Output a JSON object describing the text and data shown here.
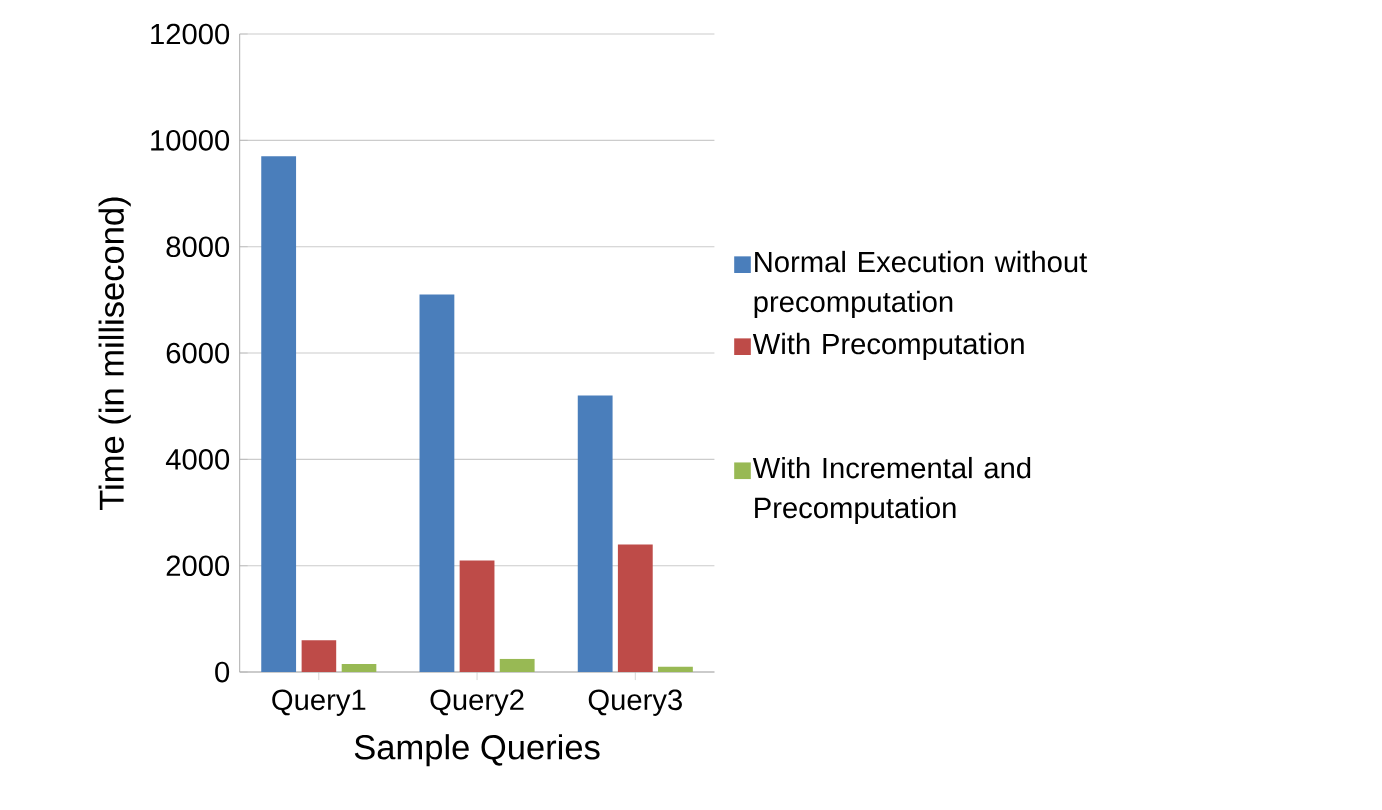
{
  "chart_data": {
    "type": "bar",
    "xlabel": "Sample Queries",
    "ylabel": "Time (in millisecond)",
    "categories": [
      "Query1",
      "Query2",
      "Query3"
    ],
    "series": [
      {
        "name": "Normal Execution without precomputation",
        "color": "#4a7ebb",
        "values": [
          9700,
          7100,
          5200
        ]
      },
      {
        "name": "With Precomputation",
        "color": "#be4b48",
        "values": [
          600,
          2100,
          2400
        ]
      },
      {
        "name": "With Incremental and Precomputation",
        "color": "#98b954",
        "values": [
          150,
          250,
          100
        ]
      }
    ],
    "ylim": [
      0,
      12000
    ],
    "yticks": [
      0,
      2000,
      4000,
      6000,
      8000,
      10000,
      12000
    ],
    "grid": "y",
    "legend": "right"
  }
}
